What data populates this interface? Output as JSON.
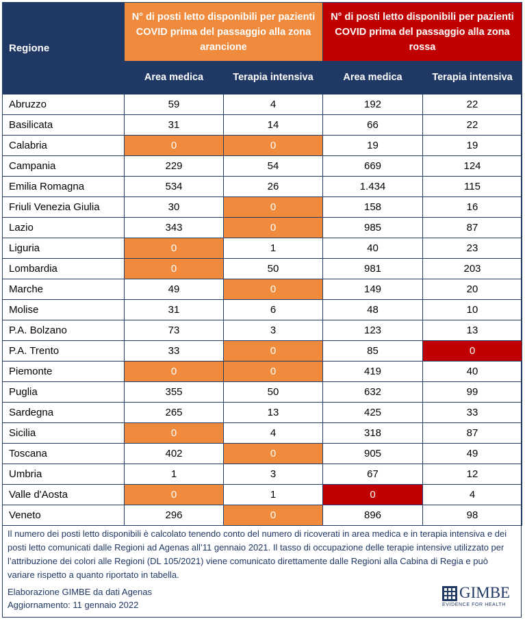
{
  "header": {
    "region": "Regione",
    "orange_group": "N° di posti letto disponibili per pazienti COVID prima del passaggio alla zona arancione",
    "red_group": "N° di posti letto disponibili per pazienti COVID prima del passaggio alla zona rossa",
    "area_medica": "Area medica",
    "terapia_intensiva": "Terapia intensiva"
  },
  "colors": {
    "navy": "#1f3864",
    "orange": "#f08a3c",
    "red": "#c00000"
  },
  "rows": [
    {
      "name": "Abruzzo",
      "o_am": "59",
      "o_ti": "4",
      "r_am": "192",
      "r_ti": "22"
    },
    {
      "name": "Basilicata",
      "o_am": "31",
      "o_ti": "14",
      "r_am": "66",
      "r_ti": "22"
    },
    {
      "name": "Calabria",
      "o_am": "0",
      "o_ti": "0",
      "r_am": "19",
      "r_ti": "19"
    },
    {
      "name": "Campania",
      "o_am": "229",
      "o_ti": "54",
      "r_am": "669",
      "r_ti": "124"
    },
    {
      "name": "Emilia Romagna",
      "o_am": "534",
      "o_ti": "26",
      "r_am": "1.434",
      "r_ti": "115"
    },
    {
      "name": "Friuli Venezia Giulia",
      "o_am": "30",
      "o_ti": "0",
      "r_am": "158",
      "r_ti": "16"
    },
    {
      "name": "Lazio",
      "o_am": "343",
      "o_ti": "0",
      "r_am": "985",
      "r_ti": "87"
    },
    {
      "name": "Liguria",
      "o_am": "0",
      "o_ti": "1",
      "r_am": "40",
      "r_ti": "23"
    },
    {
      "name": "Lombardia",
      "o_am": "0",
      "o_ti": "50",
      "r_am": "981",
      "r_ti": "203"
    },
    {
      "name": "Marche",
      "o_am": "49",
      "o_ti": "0",
      "r_am": "149",
      "r_ti": "20"
    },
    {
      "name": "Molise",
      "o_am": "31",
      "o_ti": "6",
      "r_am": "48",
      "r_ti": "10"
    },
    {
      "name": "P.A. Bolzano",
      "o_am": "73",
      "o_ti": "3",
      "r_am": "123",
      "r_ti": "13"
    },
    {
      "name": "P.A. Trento",
      "o_am": "33",
      "o_ti": "0",
      "r_am": "85",
      "r_ti": "0"
    },
    {
      "name": "Piemonte",
      "o_am": "0",
      "o_ti": "0",
      "r_am": "419",
      "r_ti": "40"
    },
    {
      "name": "Puglia",
      "o_am": "355",
      "o_ti": "50",
      "r_am": "632",
      "r_ti": "99"
    },
    {
      "name": "Sardegna",
      "o_am": "265",
      "o_ti": "13",
      "r_am": "425",
      "r_ti": "33"
    },
    {
      "name": "Sicilia",
      "o_am": "0",
      "o_ti": "4",
      "r_am": "318",
      "r_ti": "87"
    },
    {
      "name": "Toscana",
      "o_am": "402",
      "o_ti": "0",
      "r_am": "905",
      "r_ti": "49"
    },
    {
      "name": "Umbria",
      "o_am": "1",
      "o_ti": "3",
      "r_am": "67",
      "r_ti": "12"
    },
    {
      "name": "Valle d'Aosta",
      "o_am": "0",
      "o_ti": "1",
      "r_am": "0",
      "r_ti": "4"
    },
    {
      "name": "Veneto",
      "o_am": "296",
      "o_ti": "0",
      "r_am": "896",
      "r_ti": "98"
    }
  ],
  "notes": "Il numero dei posti letto disponibili è calcolato tenendo conto del numero di ricoverati in area medica e in terapia intensiva e dei posti letto comunicati dalle Regioni ad Agenas all’11 gennaio 2021. Il tasso di occupazione delle terapie intensive utilizzato per l’attribuzione dei colori alle Regioni (DL 105/2021) viene comunicato direttamente dalle Regioni alla Cabina di Regia e può variare rispetto a quanto riportato in tabella.",
  "source_line1": "Elaborazione GIMBE da dati Agenas",
  "source_line2": "Aggiornamento: 11 gennaio 2022",
  "logo": {
    "name": "GIMBE",
    "tagline": "EVIDENCE FOR HEALTH",
    "icon": "gimbe-grid-logo-icon"
  }
}
